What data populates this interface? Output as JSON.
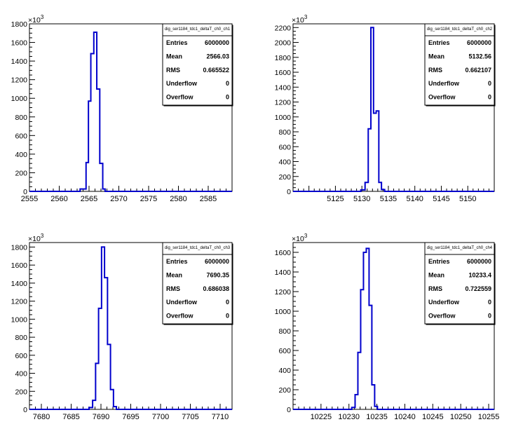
{
  "chart_data": [
    {
      "type": "histogram",
      "stats_title": "dig_ser1184_tdc1_deltaT_ch0_ch1",
      "y_exponent_label": "×10",
      "y_exponent": "3",
      "xlim": [
        2555,
        2589
      ],
      "ylim": [
        0,
        1800
      ],
      "x_ticks": [
        "2555",
        "2560",
        "2565",
        "2570",
        "2575",
        "2580",
        "2585"
      ],
      "x_tick_values": [
        2555,
        2560,
        2565,
        2570,
        2575,
        2580,
        2585
      ],
      "y_ticks": [
        "0",
        "200",
        "400",
        "600",
        "800",
        "1000",
        "1200",
        "1400",
        "1600",
        "1800"
      ],
      "y_tick_values": [
        0,
        200,
        400,
        600,
        800,
        1000,
        1200,
        1400,
        1600,
        1800
      ],
      "bin_edges": [
        2563.5,
        2564.5,
        2564.9,
        2565.3,
        2565.8,
        2566.3,
        2566.8,
        2567.3,
        2567.7
      ],
      "bin_values": [
        25,
        310,
        970,
        1480,
        1710,
        1100,
        300,
        25
      ],
      "stats": [
        {
          "label": "Entries",
          "value": "6000000"
        },
        {
          "label": "Mean",
          "value": "2566.03"
        },
        {
          "label": "RMS",
          "value": "0.665522"
        },
        {
          "label": "Underflow",
          "value": "0"
        },
        {
          "label": "Overflow",
          "value": "0"
        }
      ]
    },
    {
      "type": "histogram",
      "stats_title": "dig_ser1184_tdc1_deltaT_ch0_ch2",
      "y_exponent_label": "×10",
      "y_exponent": "3",
      "xlim": [
        5117,
        5155
      ],
      "ylim": [
        0,
        2250
      ],
      "x_ticks": [
        "5125",
        "5130",
        "5135",
        "5140",
        "5145",
        "5150"
      ],
      "x_tick_values": [
        5125,
        5130,
        5135,
        5140,
        5145,
        5150
      ],
      "y_ticks": [
        "0",
        "200",
        "400",
        "600",
        "800",
        "1000",
        "1200",
        "1400",
        "1600",
        "1800",
        "2000",
        "2200"
      ],
      "y_tick_values": [
        0,
        200,
        400,
        600,
        800,
        1000,
        1200,
        1400,
        1600,
        1800,
        2000,
        2200
      ],
      "bin_edges": [
        5129.8,
        5130.6,
        5131.2,
        5131.7,
        5132.2,
        5132.7,
        5133.2,
        5133.7,
        5134.3
      ],
      "bin_values": [
        20,
        120,
        840,
        2200,
        1050,
        1080,
        120,
        25
      ],
      "stats": [
        {
          "label": "Entries",
          "value": "6000000"
        },
        {
          "label": "Mean",
          "value": "5132.56"
        },
        {
          "label": "RMS",
          "value": "0.662107"
        },
        {
          "label": "Underflow",
          "value": "0"
        },
        {
          "label": "Overflow",
          "value": "0"
        }
      ]
    },
    {
      "type": "histogram",
      "stats_title": "dig_ser1184_tdc1_deltaT_ch0_ch3",
      "y_exponent_label": "×10",
      "y_exponent": "3",
      "xlim": [
        7678,
        7712
      ],
      "ylim": [
        0,
        1850
      ],
      "x_ticks": [
        "7680",
        "7685",
        "7690",
        "7695",
        "7700",
        "7705",
        "7710"
      ],
      "x_tick_values": [
        7680,
        7685,
        7690,
        7695,
        7700,
        7705,
        7710
      ],
      "y_ticks": [
        "0",
        "200",
        "400",
        "600",
        "800",
        "1000",
        "1200",
        "1400",
        "1600",
        "1800"
      ],
      "y_tick_values": [
        0,
        200,
        400,
        600,
        800,
        1000,
        1200,
        1400,
        1600,
        1800
      ],
      "bin_edges": [
        7688.0,
        7688.6,
        7689.1,
        7689.6,
        7690.1,
        7690.6,
        7691.1,
        7691.6,
        7692.1,
        7692.6
      ],
      "bin_values": [
        20,
        100,
        510,
        1120,
        1800,
        1460,
        720,
        220,
        30
      ],
      "stats": [
        {
          "label": "Entries",
          "value": "6000000"
        },
        {
          "label": "Mean",
          "value": "7690.35"
        },
        {
          "label": "RMS",
          "value": "0.686038"
        },
        {
          "label": "Underflow",
          "value": "0"
        },
        {
          "label": "Overflow",
          "value": "0"
        }
      ]
    },
    {
      "type": "histogram",
      "stats_title": "dig_ser1184_tdc1_deltaT_ch0_ch4",
      "y_exponent_label": "×10",
      "y_exponent": "3",
      "xlim": [
        10220,
        10256
      ],
      "ylim": [
        0,
        1700
      ],
      "x_ticks": [
        "10225",
        "10230",
        "10235",
        "10240",
        "10245",
        "10250",
        "10255"
      ],
      "x_tick_values": [
        10225,
        10230,
        10235,
        10240,
        10245,
        10250,
        10255
      ],
      "y_ticks": [
        "0",
        "200",
        "400",
        "600",
        "800",
        "1000",
        "1200",
        "1400",
        "1600"
      ],
      "y_tick_values": [
        0,
        200,
        400,
        600,
        800,
        1000,
        1200,
        1400,
        1600
      ],
      "bin_edges": [
        10230.5,
        10231.1,
        10231.6,
        10232.1,
        10232.6,
        10233.1,
        10233.6,
        10234.1,
        10234.6,
        10235.1
      ],
      "bin_values": [
        20,
        150,
        580,
        1220,
        1600,
        1640,
        1060,
        250,
        30
      ],
      "stats": [
        {
          "label": "Entries",
          "value": "6000000"
        },
        {
          "label": "Mean",
          "value": "10233.4"
        },
        {
          "label": "RMS",
          "value": "0.722559"
        },
        {
          "label": "Underflow",
          "value": "0"
        },
        {
          "label": "Overflow",
          "value": "0"
        }
      ]
    }
  ]
}
